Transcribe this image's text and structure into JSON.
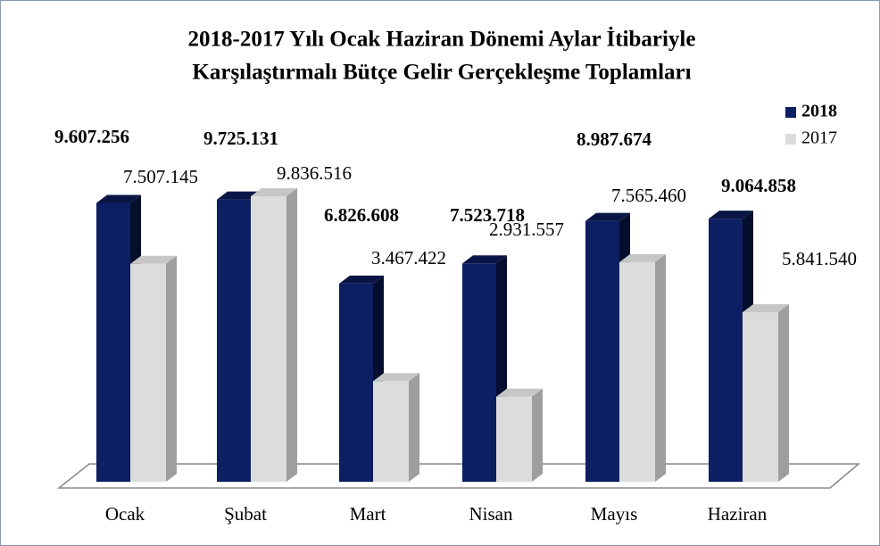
{
  "chart_data": {
    "type": "bar3d",
    "title": [
      "2018-2017 Yılı Ocak Haziran Dönemi Aylar İtibariyle",
      "Karşılaştırmalı Bütçe Gelir Gerçekleşme Toplamları"
    ],
    "categories": [
      "Ocak",
      "Şubat",
      "Mart",
      "Nisan",
      "Mayıs",
      "Haziran"
    ],
    "series": [
      {
        "name": "2018",
        "color": "#0d1f63",
        "values": [
          9607256,
          9725131,
          6826608,
          7523718,
          8987674,
          9064858
        ],
        "value_labels": [
          "9.607.256",
          "9.725.131",
          "6.826.608",
          "7.523.718",
          "8.987.674",
          "9.064.858"
        ]
      },
      {
        "name": "2017",
        "color": "#dcdcdc",
        "values": [
          7507145,
          9836516,
          3467422,
          2931557,
          7565460,
          5841540
        ],
        "value_labels": [
          "7.507.145",
          "9.836.516",
          "3.467.422",
          "2.931.557",
          "7.565.460",
          "5.841.540"
        ]
      }
    ],
    "legend": "right"
  }
}
